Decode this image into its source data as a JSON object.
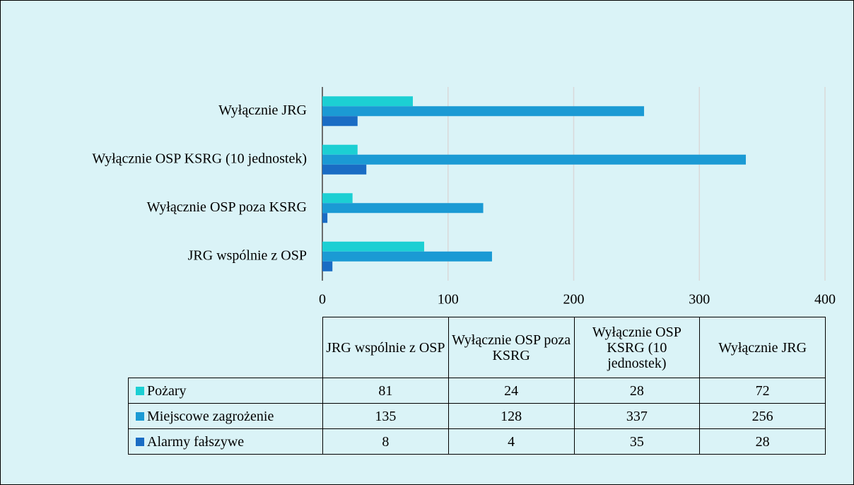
{
  "chart_data": {
    "type": "bar",
    "orientation": "horizontal",
    "categories": [
      "JRG wspólnie z OSP",
      "Wyłącznie OSP poza KSRG",
      "Wyłącznie OSP KSRG (10 jednostek)",
      "Wyłącznie JRG"
    ],
    "series": [
      {
        "name": "Pożary",
        "color": "#1ccfd3",
        "values": [
          81,
          24,
          28,
          72
        ]
      },
      {
        "name": "Miejscowe zagrożenie",
        "color": "#1b9ad4",
        "values": [
          135,
          128,
          337,
          256
        ]
      },
      {
        "name": "Alarmy fałszywe",
        "color": "#1a6cc4",
        "values": [
          8,
          4,
          35,
          28
        ]
      }
    ],
    "xlim": [
      0,
      400
    ],
    "xticks": [
      0,
      100,
      200,
      300,
      400
    ],
    "grid": true,
    "data_table": true
  }
}
